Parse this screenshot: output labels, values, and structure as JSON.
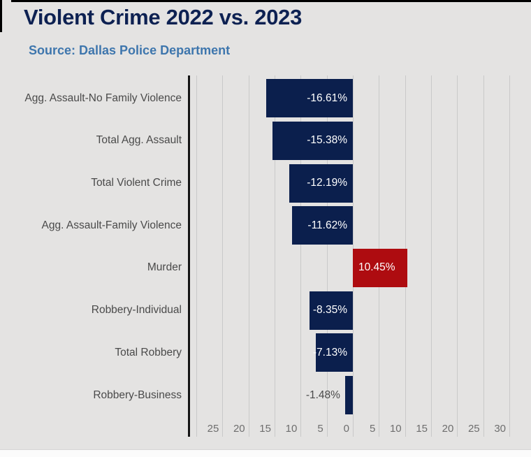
{
  "page": {
    "title": "Violent Crime 2022 vs. 2023",
    "subtitle": "Source: Dallas Police Department"
  },
  "colors": {
    "background": "#e4e3e2",
    "title_text": "#0d2152",
    "subtitle_text": "#3e76ad",
    "negative_bar": "#0b1f4d",
    "positive_bar": "#ae0c10",
    "gridline": "#c9c9c9",
    "axis_line": "#141414",
    "category_label": "#4a4a4a",
    "tick_label": "#6e6e6e",
    "value_label_inside": "#ffffff",
    "value_label_outside": "#4a4a4a"
  },
  "chart_data": {
    "type": "bar",
    "orientation": "horizontal",
    "title": "Violent Crime 2022 vs. 2023",
    "subtitle": "Source: Dallas Police Department",
    "categories": [
      "Agg. Assault-No Family Violence",
      "Total Agg. Assault",
      "Total Violent Crime",
      "Agg. Assault-Family Violence",
      "Murder",
      "Robbery-Individual",
      "Total Robbery",
      "Robbery-Business"
    ],
    "values": [
      -16.61,
      -15.38,
      -12.19,
      -11.62,
      10.45,
      -8.35,
      -7.13,
      -1.48
    ],
    "value_labels": [
      "-16.61%",
      "-15.38%",
      "-12.19%",
      "-11.62%",
      "10.45%",
      "-8.35%",
      "-7.13%",
      "-1.48%"
    ],
    "xlim": [
      -30,
      30
    ],
    "grid_values": [
      -30,
      -25,
      -20,
      -15,
      -10,
      -5,
      0,
      5,
      10,
      15,
      20,
      25,
      30
    ],
    "ticks": [
      {
        "value": -25,
        "label": "25"
      },
      {
        "value": -20,
        "label": "20"
      },
      {
        "value": -15,
        "label": "15"
      },
      {
        "value": -10,
        "label": "10"
      },
      {
        "value": -5,
        "label": "5"
      },
      {
        "value": 0,
        "label": "0"
      },
      {
        "value": 5,
        "label": "5"
      },
      {
        "value": 10,
        "label": "10"
      },
      {
        "value": 15,
        "label": "15"
      },
      {
        "value": 20,
        "label": "20"
      },
      {
        "value": 25,
        "label": "25"
      },
      {
        "value": 30,
        "label": "30"
      }
    ],
    "grid": true,
    "legend": false
  }
}
